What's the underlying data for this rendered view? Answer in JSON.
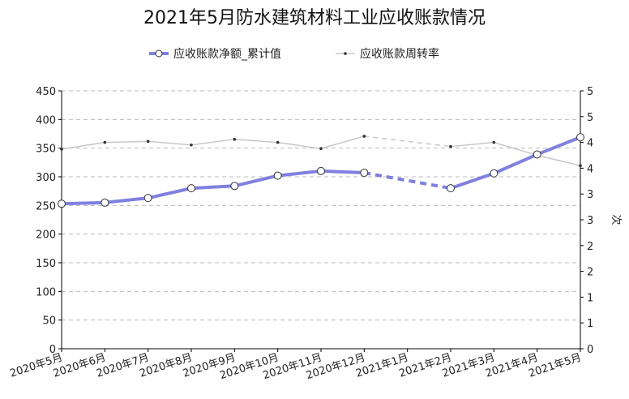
{
  "chart_data": {
    "type": "line",
    "title": "2021年5月防水建筑材料工业应收账款情况",
    "categories": [
      "2020年5月",
      "2020年6月",
      "2020年7月",
      "2020年8月",
      "2020年9月",
      "2020年10月",
      "2020年11月",
      "2020年12月",
      "2021年1月",
      "2021年2月",
      "2021年3月",
      "2021年4月",
      "2021年5月"
    ],
    "series": [
      {
        "name": "应收账款净额_累计值",
        "axis": "left",
        "color": "#8080e0",
        "values": [
          253,
          255,
          263,
          280,
          284,
          302,
          310,
          307,
          null,
          280,
          306,
          339,
          369
        ]
      },
      {
        "name": "应收账款周转率",
        "axis": "right",
        "color": "#c8c8c8",
        "values": [
          3.87,
          4.0,
          4.02,
          3.95,
          4.06,
          4.0,
          3.88,
          4.12,
          null,
          3.92,
          4.0,
          3.75,
          3.55
        ]
      }
    ],
    "y_left": {
      "min": 0,
      "max": 450,
      "ticks": [
        "0",
        "50",
        "100",
        "150",
        "200",
        "250",
        "300",
        "350",
        "400",
        "450"
      ]
    },
    "y_right": {
      "min": 0,
      "max": 5,
      "label": "次",
      "ticks": [
        "0",
        "1",
        "1",
        "2",
        "2",
        "3",
        "3",
        "4",
        "4",
        "5",
        "5"
      ]
    },
    "grid": true,
    "legend": "top-center"
  }
}
